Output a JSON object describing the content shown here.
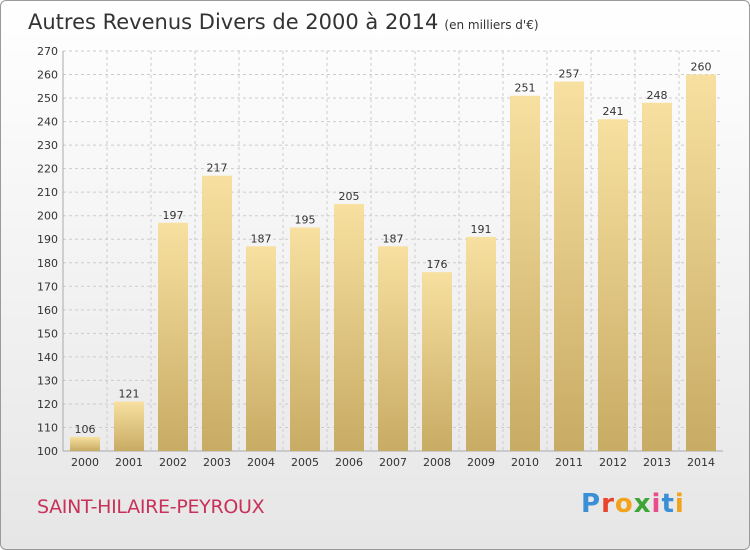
{
  "title": "Autres Revenus Divers de 2000 à 2014",
  "unit_label": "(en milliers d'€)",
  "location": "SAINT-HILAIRE-PEYROUX",
  "logo": {
    "text": "Proxiti",
    "letter_colors": [
      "#3b8fd6",
      "#e8452c",
      "#f2a21b",
      "#3fa535",
      "#e84c8b",
      "#3b8fd6",
      "#f2a21b"
    ]
  },
  "colors": {
    "bar_top": "#f7e0a0",
    "bar_bottom": "#c8ab64",
    "grid": "#cccccc",
    "axis_text": "#333333"
  },
  "chart_data": {
    "type": "bar",
    "title": "Autres Revenus Divers de 2000 à 2014",
    "categories": [
      "2000",
      "2001",
      "2002",
      "2003",
      "2004",
      "2005",
      "2006",
      "2007",
      "2008",
      "2009",
      "2010",
      "2011",
      "2012",
      "2013",
      "2014"
    ],
    "values": [
      106,
      121,
      197,
      217,
      187,
      195,
      205,
      187,
      176,
      191,
      251,
      257,
      241,
      248,
      260
    ],
    "ylim": [
      100,
      270
    ],
    "yticks": [
      100,
      110,
      120,
      130,
      140,
      150,
      160,
      170,
      180,
      190,
      200,
      210,
      220,
      230,
      240,
      250,
      260,
      270
    ],
    "grid": true
  }
}
